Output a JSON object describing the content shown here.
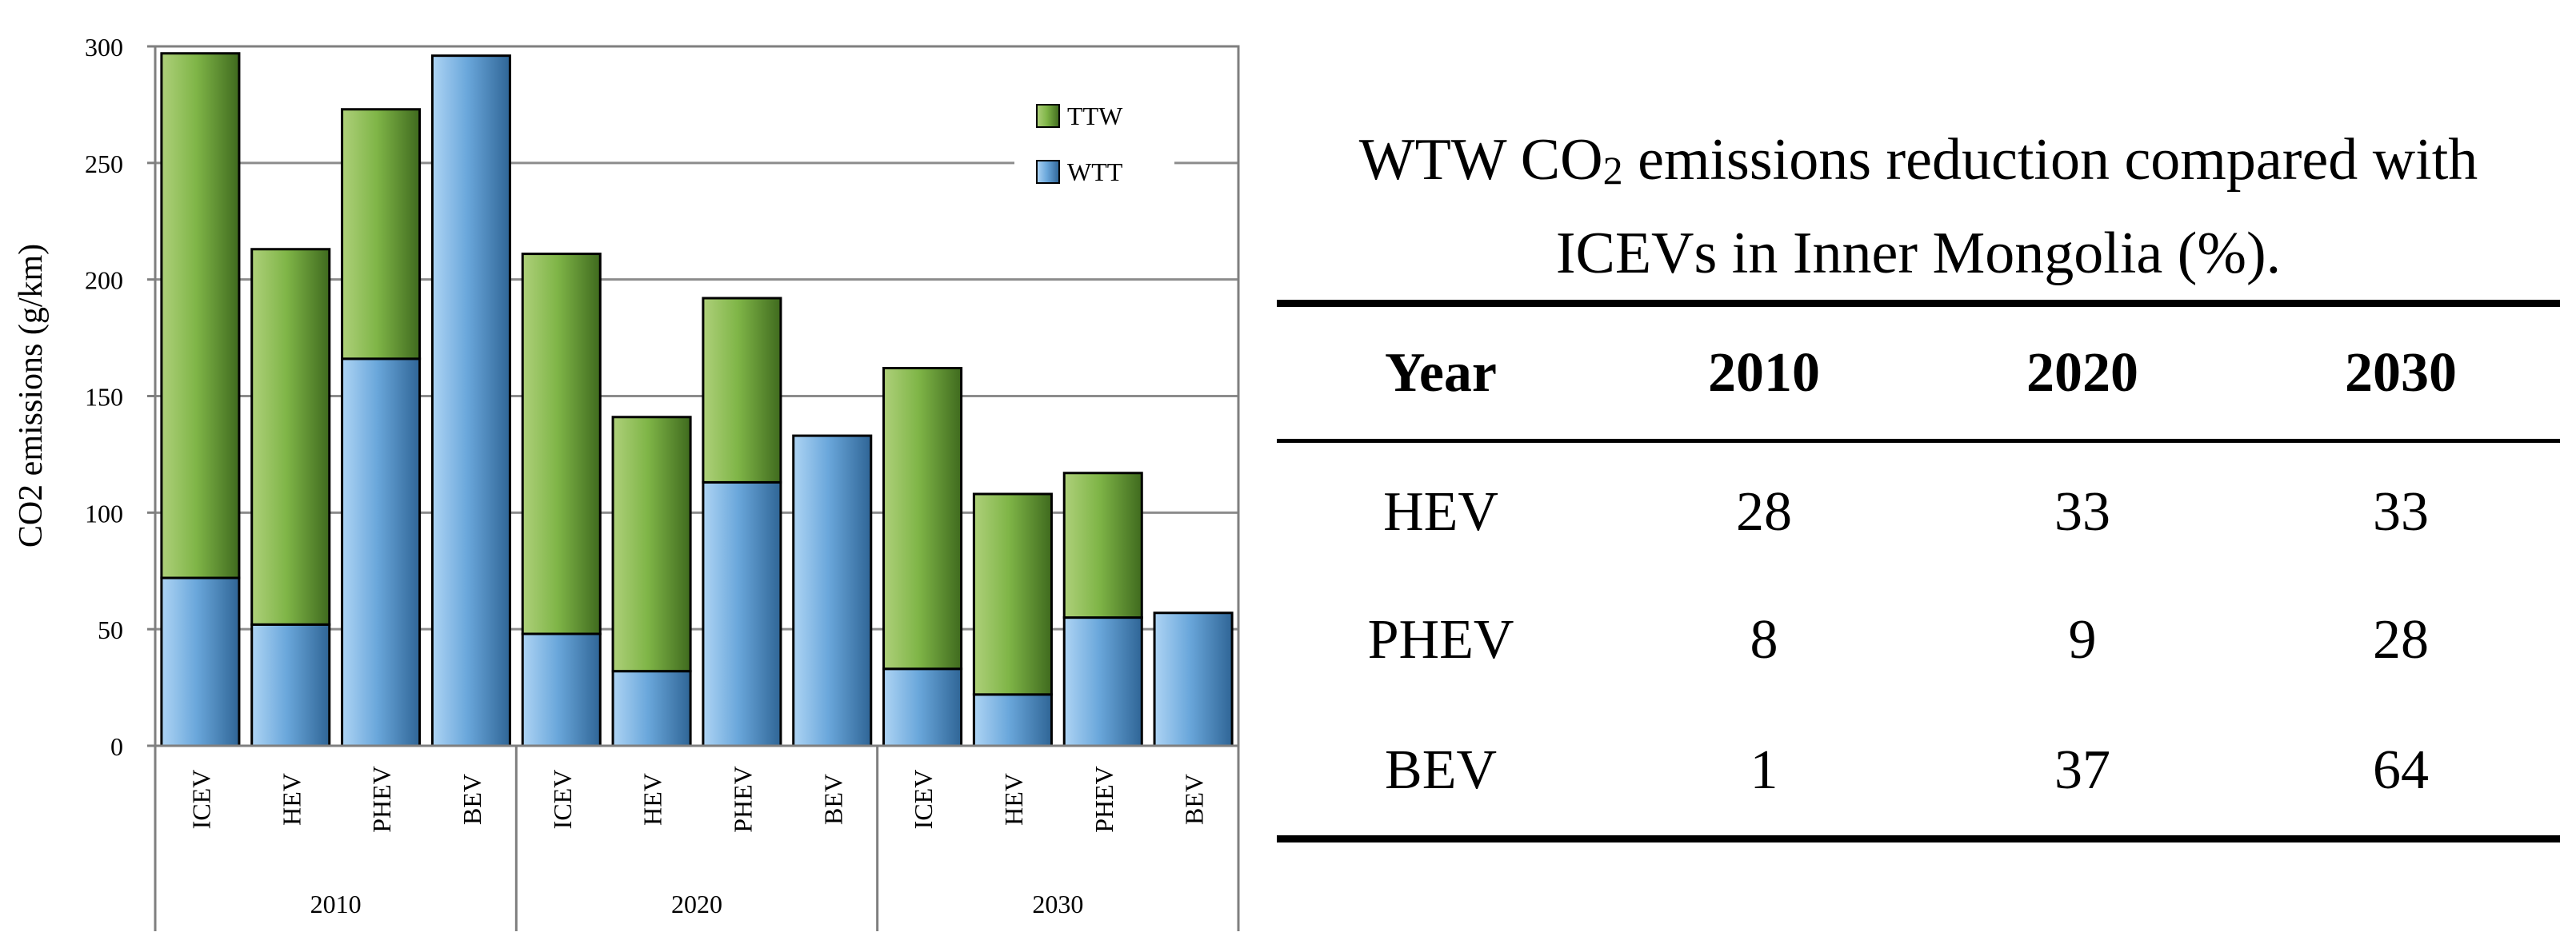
{
  "chart_data": {
    "type": "bar",
    "stacked": true,
    "ylabel": "CO2 emissions (g/km)",
    "ylim": [
      0,
      300
    ],
    "yticks": [
      0,
      50,
      100,
      150,
      200,
      250,
      300
    ],
    "groups": [
      {
        "label": "2010",
        "categories": [
          "ICEV",
          "HEV",
          "PHEV",
          "BEV"
        ]
      },
      {
        "label": "2020",
        "categories": [
          "ICEV",
          "HEV",
          "PHEV",
          "BEV"
        ]
      },
      {
        "label": "2030",
        "categories": [
          "ICEV",
          "HEV",
          "PHEV",
          "BEV"
        ]
      }
    ],
    "series": [
      {
        "name": "WTT",
        "color": "#6aa7db",
        "values": [
          72,
          52,
          166,
          296,
          48,
          32,
          113,
          133,
          33,
          22,
          55,
          57
        ]
      },
      {
        "name": "TTW",
        "color": "#7fb547",
        "values": [
          225,
          161,
          107,
          0,
          163,
          109,
          79,
          0,
          129,
          86,
          62,
          0
        ]
      }
    ],
    "legend": {
      "position": "top-right",
      "entries": [
        "TTW",
        "WTT"
      ]
    },
    "grid": true
  },
  "table": {
    "title_line1_pre": "WTW CO",
    "title_sub": "2",
    "title_line1_post": " emissions reduction compared with",
    "title_line2": "ICEVs in Inner Mongolia (%).",
    "headers": [
      "Year",
      "2010",
      "2020",
      "2030"
    ],
    "rows": [
      [
        "HEV",
        "28",
        "33",
        "33"
      ],
      [
        "PHEV",
        "8",
        "9",
        "28"
      ],
      [
        "BEV",
        "1",
        "37",
        "64"
      ]
    ]
  }
}
